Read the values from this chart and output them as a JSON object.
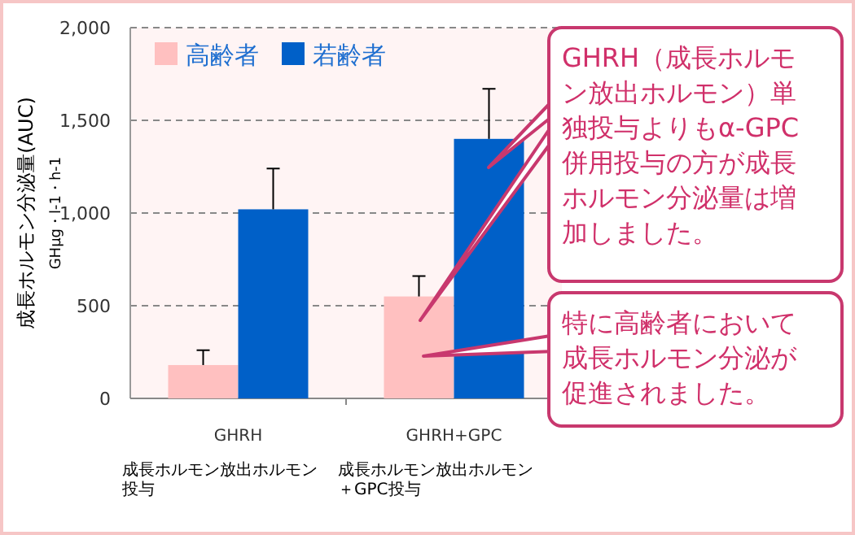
{
  "chart_data": {
    "type": "bar",
    "ylabel": "成長ホルモン分泌量(AUC)\nGHμg・l-1・h-1",
    "categories": [
      "GHRH",
      "GHRH+GPC"
    ],
    "series": [
      {
        "name": "高齢者",
        "color": "#ffc0c0",
        "values": [
          180,
          550
        ],
        "errors": [
          [
            180,
            260
          ],
          [
            550,
            660
          ]
        ]
      },
      {
        "name": "若齢者",
        "color": "#0060c8",
        "values": [
          1020,
          1400
        ],
        "errors": [
          [
            1020,
            1240
          ],
          [
            1400,
            1670
          ]
        ]
      }
    ],
    "ylim": [
      0,
      2000
    ],
    "yticks": [
      0,
      500,
      {
        "value": 1000,
        "label": "1,000"
      },
      {
        "value": 1500,
        "label": "1,500"
      },
      {
        "value": 2000,
        "label": "2,000"
      }
    ],
    "grid": "y",
    "legend": "top left",
    "annotations": [
      "成長ホルモン放出ホルモン投与",
      "成長ホルモン放出ホルモン＋GPC投与",
      "GHRH（成長ホルモン放出ホルモン）単独投与よりもα-GPC併用投与の方が成長ホルモン分泌量は増加しました。",
      "特に高齢者において成長ホルモン分泌が促進されました。"
    ]
  }
}
